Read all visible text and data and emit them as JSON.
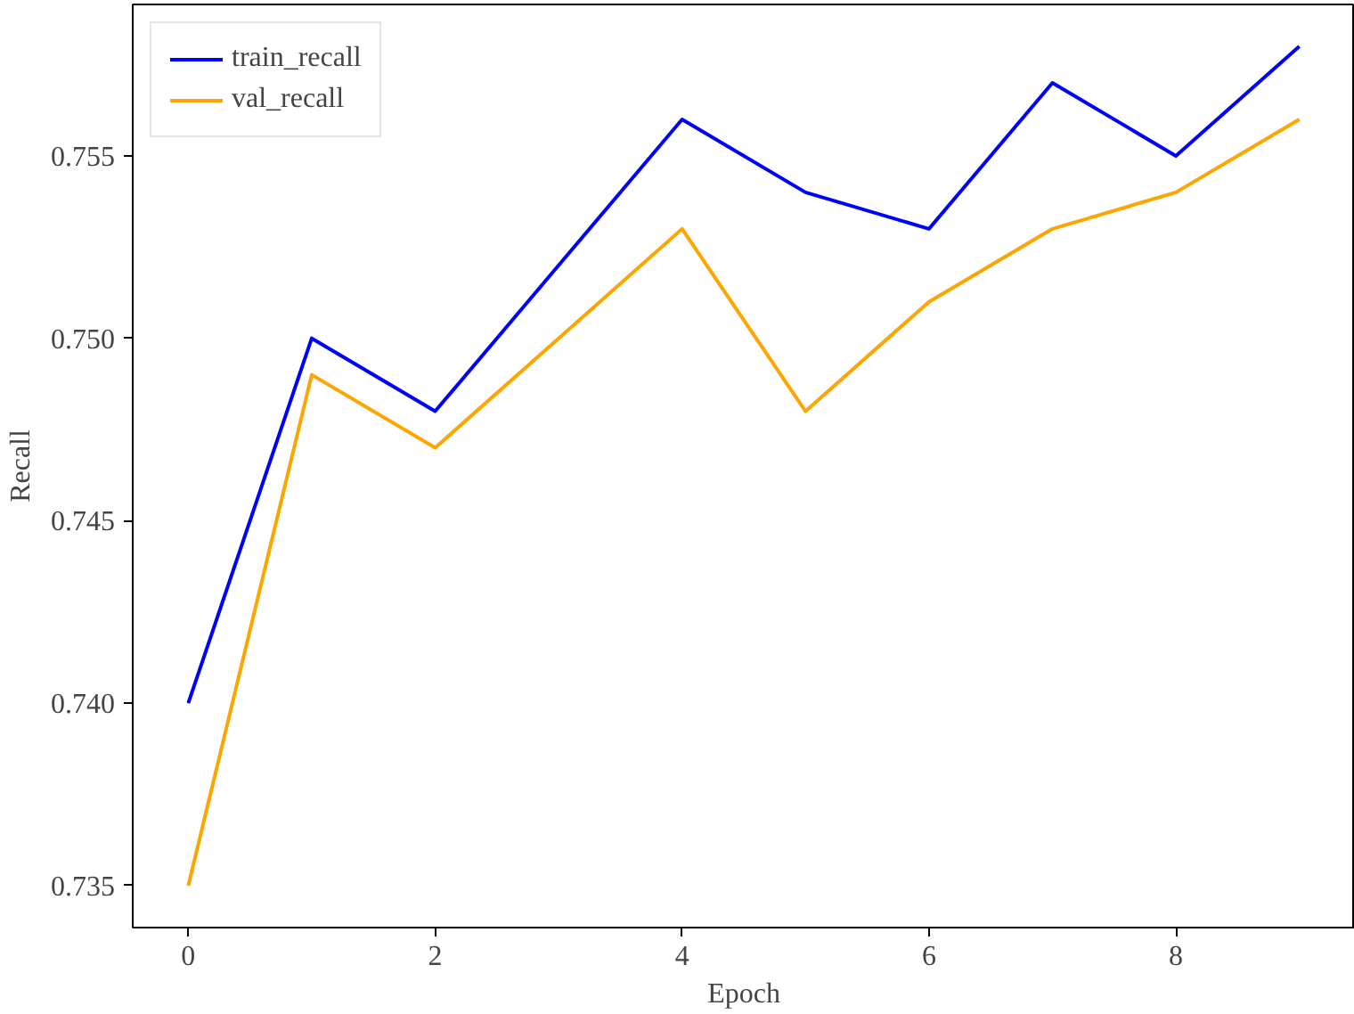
{
  "chart_data": {
    "type": "line",
    "xlabel": "Epoch",
    "ylabel": "Recall",
    "x": [
      0,
      1,
      2,
      3,
      4,
      5,
      6,
      7,
      8,
      9
    ],
    "series": [
      {
        "name": "train_recall",
        "color": "#0000ff",
        "values": [
          0.74,
          0.75,
          0.748,
          0.752,
          0.756,
          0.754,
          0.753,
          0.757,
          0.755,
          0.758
        ]
      },
      {
        "name": "val_recall",
        "color": "#ffa500",
        "values": [
          0.735,
          0.749,
          0.747,
          0.75,
          0.753,
          0.748,
          0.751,
          0.753,
          0.754,
          0.756
        ]
      }
    ],
    "xlim": [
      -0.45,
      9.45
    ],
    "ylim": [
      0.73385,
      0.75915
    ],
    "xticks": [
      0,
      2,
      4,
      6,
      8
    ],
    "yticks": [
      {
        "value": 0.735,
        "label": "0.735"
      },
      {
        "value": 0.74,
        "label": "0.740"
      },
      {
        "value": 0.745,
        "label": "0.745"
      },
      {
        "value": 0.75,
        "label": "0.750"
      },
      {
        "value": 0.755,
        "label": "0.755"
      }
    ],
    "grid": false,
    "legend": "top left",
    "line_style": "solid",
    "marker": "none"
  }
}
